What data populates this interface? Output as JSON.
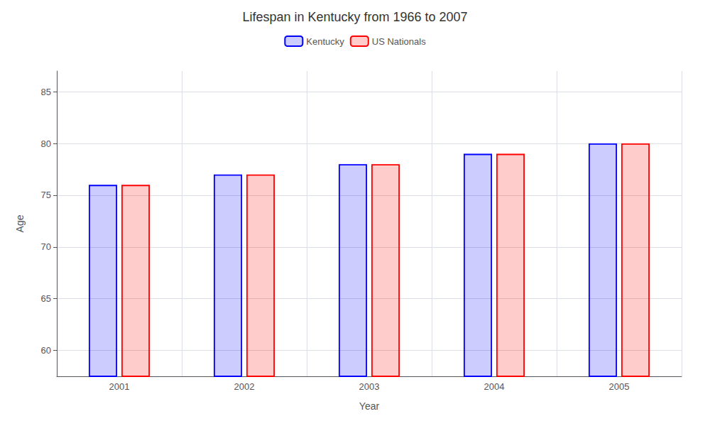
{
  "chart_data": {
    "type": "bar",
    "title": "Lifespan in Kentucky from 1966 to 2007",
    "xlabel": "Year",
    "ylabel": "Age",
    "categories": [
      "2001",
      "2002",
      "2003",
      "2004",
      "2005"
    ],
    "series": [
      {
        "name": "Kentucky",
        "color": "#0000ff",
        "values": [
          76,
          77,
          78,
          79,
          80
        ]
      },
      {
        "name": "US Nationals",
        "color": "#ff0000",
        "values": [
          76,
          77,
          78,
          79,
          80
        ]
      }
    ],
    "ylim": [
      57.5,
      87
    ],
    "yticks": [
      60,
      65,
      70,
      75,
      80,
      85
    ],
    "grid": true,
    "legend": "top"
  }
}
